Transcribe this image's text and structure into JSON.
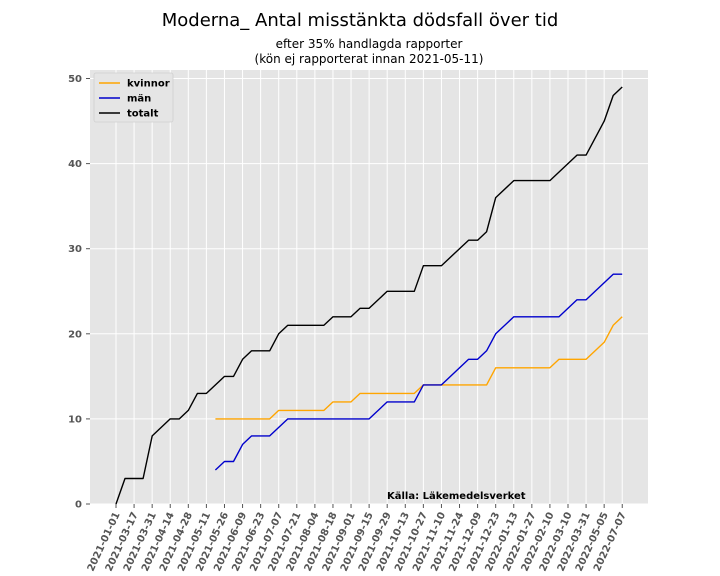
{
  "chart_data": {
    "type": "line",
    "title": "Moderna_ Antal misstänkta dödsfall över tid",
    "subtitle_lines": [
      "efter 35% handlagda rapporter",
      "(kön ej rapporterat innan 2021-05-11)"
    ],
    "annotation": "Källa: Läkemedelsverket",
    "xlabel": "",
    "ylabel": "",
    "ylim": [
      0,
      51
    ],
    "yticks": [
      0,
      10,
      20,
      30,
      40,
      50
    ],
    "xticks": [
      "2021-01-01",
      "2021-03-17",
      "2021-03-31",
      "2021-04-14",
      "2021-04-28",
      "2021-05-11",
      "2021-05-26",
      "2021-06-09",
      "2021-06-23",
      "2021-07-07",
      "2021-07-21",
      "2021-08-04",
      "2021-08-18",
      "2021-09-01",
      "2021-09-15",
      "2021-09-29",
      "2021-10-13",
      "2021-10-27",
      "2021-11-10",
      "2021-11-24",
      "2021-12-09",
      "2021-12-23",
      "2022-01-13",
      "2022-01-27",
      "2022-02-10",
      "2022-03-10",
      "2022-03-31",
      "2022-05-05",
      "2022-07-07"
    ],
    "legend_position": "top-left",
    "grid": true,
    "series": [
      {
        "name": "kvinnor",
        "color": "#FFA500",
        "points": [
          [
            11,
            10
          ],
          [
            17,
            10
          ],
          [
            18,
            11
          ],
          [
            23,
            11
          ],
          [
            24,
            12
          ],
          [
            26,
            12
          ],
          [
            27,
            13
          ],
          [
            33,
            13
          ],
          [
            34,
            14
          ],
          [
            41,
            14
          ],
          [
            42,
            16
          ],
          [
            48,
            16
          ],
          [
            49,
            17
          ],
          [
            52,
            17
          ],
          [
            54,
            19
          ],
          [
            55,
            21
          ],
          [
            56,
            22
          ]
        ]
      },
      {
        "name": "män",
        "color": "#0000CC",
        "points": [
          [
            11,
            4
          ],
          [
            12,
            5
          ],
          [
            13,
            5
          ],
          [
            14,
            7
          ],
          [
            15,
            8
          ],
          [
            17,
            8
          ],
          [
            19,
            10
          ],
          [
            28,
            10
          ],
          [
            30,
            12
          ],
          [
            33,
            12
          ],
          [
            34,
            14
          ],
          [
            36,
            14
          ],
          [
            39,
            17
          ],
          [
            40,
            17
          ],
          [
            41,
            18
          ],
          [
            42,
            20
          ],
          [
            44,
            22
          ],
          [
            49,
            22
          ],
          [
            51,
            24
          ],
          [
            52,
            24
          ],
          [
            55,
            27
          ],
          [
            56,
            27
          ]
        ]
      },
      {
        "name": "totalt",
        "color": "#000000",
        "points": [
          [
            0,
            0
          ],
          [
            1,
            3
          ],
          [
            3,
            3
          ],
          [
            4,
            8
          ],
          [
            6,
            10
          ],
          [
            7,
            10
          ],
          [
            8,
            11
          ],
          [
            9,
            13
          ],
          [
            10,
            13
          ],
          [
            12,
            15
          ],
          [
            13,
            15
          ],
          [
            14,
            17
          ],
          [
            15,
            18
          ],
          [
            17,
            18
          ],
          [
            18,
            20
          ],
          [
            19,
            21
          ],
          [
            23,
            21
          ],
          [
            24,
            22
          ],
          [
            26,
            22
          ],
          [
            27,
            23
          ],
          [
            28,
            23
          ],
          [
            30,
            25
          ],
          [
            33,
            25
          ],
          [
            34,
            28
          ],
          [
            36,
            28
          ],
          [
            39,
            31
          ],
          [
            40,
            31
          ],
          [
            41,
            32
          ],
          [
            42,
            36
          ],
          [
            44,
            38
          ],
          [
            48,
            38
          ],
          [
            51,
            41
          ],
          [
            52,
            41
          ],
          [
            54,
            45
          ],
          [
            55,
            48
          ],
          [
            56,
            49
          ]
        ]
      }
    ]
  }
}
